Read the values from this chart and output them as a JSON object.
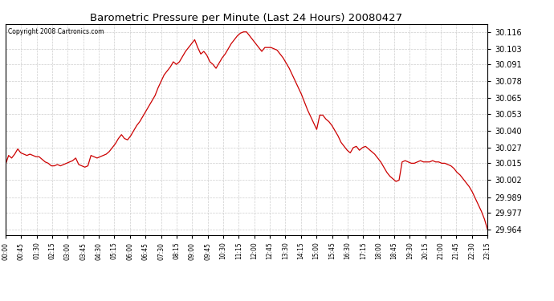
{
  "title": "Barometric Pressure per Minute (Last 24 Hours) 20080427",
  "copyright": "Copyright 2008 Cartronics.com",
  "line_color": "#cc0000",
  "bg_color": "#ffffff",
  "grid_color": "#c8c8c8",
  "yticks": [
    29.964,
    29.977,
    29.989,
    30.002,
    30.015,
    30.027,
    30.04,
    30.053,
    30.065,
    30.078,
    30.091,
    30.103,
    30.116
  ],
  "ylim": [
    29.96,
    30.122
  ],
  "xtick_labels": [
    "00:00",
    "00:45",
    "01:30",
    "02:15",
    "03:00",
    "03:45",
    "04:30",
    "05:15",
    "06:00",
    "06:45",
    "07:30",
    "08:15",
    "09:00",
    "09:45",
    "10:30",
    "11:15",
    "12:00",
    "12:45",
    "13:30",
    "14:15",
    "15:00",
    "15:45",
    "16:30",
    "17:15",
    "18:00",
    "18:45",
    "19:30",
    "20:15",
    "21:00",
    "21:45",
    "22:30",
    "23:15"
  ],
  "pressure_data": [
    30.014,
    30.021,
    30.019,
    30.022,
    30.026,
    30.023,
    30.022,
    30.021,
    30.022,
    30.021,
    30.02,
    30.02,
    30.018,
    30.016,
    30.015,
    30.013,
    30.013,
    30.014,
    30.013,
    30.014,
    30.015,
    30.016,
    30.017,
    30.019,
    30.014,
    30.013,
    30.012,
    30.013,
    30.021,
    30.02,
    30.019,
    30.02,
    30.021,
    30.022,
    30.024,
    30.027,
    30.03,
    30.034,
    30.037,
    30.034,
    30.033,
    30.036,
    30.04,
    30.044,
    30.047,
    30.051,
    30.055,
    30.059,
    30.063,
    30.067,
    30.073,
    30.078,
    30.083,
    30.086,
    30.089,
    30.093,
    30.091,
    30.093,
    30.097,
    30.101,
    30.104,
    30.107,
    30.11,
    30.104,
    30.099,
    30.101,
    30.098,
    30.093,
    30.091,
    30.088,
    30.092,
    30.096,
    30.099,
    30.103,
    30.107,
    30.11,
    30.113,
    30.115,
    30.116,
    30.116,
    30.113,
    30.11,
    30.107,
    30.104,
    30.101,
    30.104,
    30.104,
    30.104,
    30.103,
    30.102,
    30.099,
    30.096,
    30.092,
    30.088,
    30.083,
    30.078,
    30.073,
    30.068,
    30.062,
    30.056,
    30.051,
    30.046,
    30.041,
    30.052,
    30.052,
    30.049,
    30.047,
    30.044,
    30.04,
    30.036,
    30.031,
    30.028,
    30.025,
    30.023,
    30.027,
    30.028,
    30.025,
    30.027,
    30.028,
    30.026,
    30.024,
    30.022,
    30.019,
    30.016,
    30.012,
    30.008,
    30.005,
    30.003,
    30.001,
    30.002,
    30.016,
    30.017,
    30.016,
    30.015,
    30.015,
    30.016,
    30.017,
    30.016,
    30.016,
    30.016,
    30.017,
    30.016,
    30.016,
    30.015,
    30.015,
    30.014,
    30.013,
    30.011,
    30.008,
    30.006,
    30.003,
    30.0,
    29.997,
    29.993,
    29.988,
    29.983,
    29.978,
    29.972,
    29.964
  ]
}
